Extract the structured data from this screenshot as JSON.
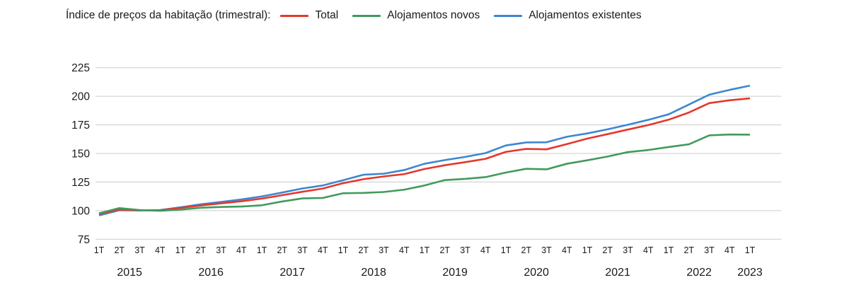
{
  "chart_data": {
    "type": "line",
    "title": "Índice de preços da habitação (trimestral):",
    "grid": true,
    "legend_position": "top",
    "ylim": [
      75,
      225
    ],
    "y_ticks": [
      225,
      200,
      175,
      150,
      125,
      100,
      75
    ],
    "x_labels": [
      "1T",
      "2T",
      "3T",
      "4T",
      "1T",
      "2T",
      "3T",
      "4T",
      "1T",
      "2T",
      "3T",
      "4T",
      "1T",
      "2T",
      "3T",
      "4T",
      "1T",
      "2T",
      "3T",
      "4T",
      "1T",
      "2T",
      "3T",
      "4T",
      "1T",
      "2T",
      "3T",
      "4T",
      "1T",
      "2T",
      "3T",
      "4T",
      "1T"
    ],
    "year_groups": [
      {
        "label": "2015",
        "count": 4
      },
      {
        "label": "2016",
        "count": 4
      },
      {
        "label": "2017",
        "count": 4
      },
      {
        "label": "2018",
        "count": 4
      },
      {
        "label": "2019",
        "count": 4
      },
      {
        "label": "2020",
        "count": 4
      },
      {
        "label": "2021",
        "count": 4
      },
      {
        "label": "2022",
        "count": 4
      },
      {
        "label": "2023",
        "count": 1
      }
    ],
    "series": [
      {
        "name": "Total",
        "color": "#e5372c",
        "values": [
          97.0,
          100.9,
          100.3,
          100.3,
          102.4,
          104.5,
          106.4,
          108.2,
          110.5,
          113.5,
          116.5,
          119.3,
          124.0,
          127.5,
          129.9,
          131.9,
          136.4,
          139.7,
          142.4,
          145.3,
          151.4,
          154.0,
          153.6,
          158.2,
          163.0,
          166.9,
          170.9,
          174.8,
          179.5,
          185.8,
          194.0,
          196.5,
          198.2
        ]
      },
      {
        "name": "Alojamentos novos",
        "color": "#429a5c",
        "values": [
          97.7,
          102.2,
          100.5,
          99.9,
          100.9,
          102.5,
          103.2,
          103.6,
          104.7,
          108.0,
          110.7,
          111.1,
          115.2,
          115.5,
          116.3,
          118.3,
          122.0,
          126.7,
          127.8,
          129.3,
          133.3,
          136.6,
          136.1,
          141.0,
          144.0,
          147.3,
          151.2,
          153.0,
          155.6,
          158.0,
          165.8,
          166.6,
          166.4
        ]
      },
      {
        "name": "Alojamentos existentes",
        "color": "#3d87d0",
        "values": [
          95.8,
          100.4,
          100.1,
          100.5,
          102.9,
          105.5,
          107.6,
          109.8,
          112.4,
          115.8,
          119.4,
          122.0,
          126.6,
          131.4,
          132.3,
          135.5,
          141.0,
          144.2,
          147.0,
          150.3,
          157.0,
          159.6,
          159.8,
          164.6,
          167.5,
          171.1,
          175.1,
          179.4,
          184.2,
          192.8,
          201.4,
          205.6,
          209.3
        ]
      }
    ],
    "grid_color": "#cccccc",
    "text_color": "#1a1a1a"
  }
}
